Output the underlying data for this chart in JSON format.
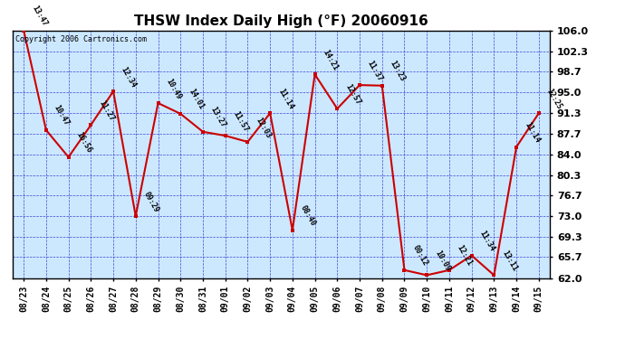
{
  "title": "THSW Index Daily High (°F) 20060916",
  "copyright": "Copyright 2006 Cartronics.com",
  "outer_bg": "#ffffff",
  "plot_bg_color": "#cce8ff",
  "line_color": "#cc0000",
  "marker_color": "#cc0000",
  "grid_color": "#3333cc",
  "ylim": [
    62.0,
    106.0
  ],
  "yticks": [
    62.0,
    65.7,
    69.3,
    73.0,
    76.7,
    80.3,
    84.0,
    87.7,
    91.3,
    95.0,
    98.7,
    102.3,
    106.0
  ],
  "dates": [
    "08/23",
    "08/24",
    "08/25",
    "08/26",
    "08/27",
    "08/28",
    "08/29",
    "08/30",
    "08/31",
    "09/01",
    "09/02",
    "09/03",
    "09/04",
    "09/05",
    "09/06",
    "09/07",
    "09/08",
    "09/09",
    "09/10",
    "09/11",
    "09/12",
    "09/13",
    "09/14",
    "09/15"
  ],
  "values": [
    106.0,
    88.3,
    83.5,
    89.2,
    95.2,
    73.0,
    93.1,
    91.2,
    88.0,
    87.3,
    86.2,
    91.3,
    70.5,
    98.2,
    92.1,
    96.3,
    96.2,
    63.4,
    62.5,
    63.4,
    66.0,
    62.5,
    85.3,
    91.3
  ],
  "labels": [
    "13:47",
    "10:47",
    "16:56",
    "11:27",
    "12:34",
    "09:29",
    "10:49",
    "14:01",
    "13:27",
    "11:57",
    "12:03",
    "11:14",
    "08:40",
    "14:21",
    "12:57",
    "11:37",
    "13:23",
    "00:12",
    "10:09",
    "12:21",
    "11:34",
    "13:11",
    "11:14",
    "12:25"
  ]
}
